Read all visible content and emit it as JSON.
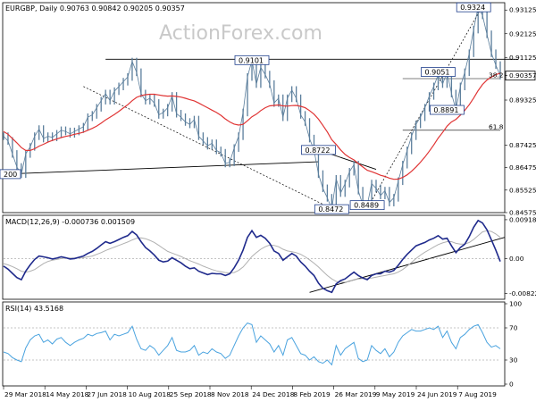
{
  "chart_data": {
    "type": "line",
    "source_watermark": "ActionForex.com",
    "x_ticks": [
      "29 Mar 2018",
      "14 May 2018",
      "27 Jun 2018",
      "10 Aug 2018",
      "25 Sep 2018",
      "8 Nov 2018",
      "24 Dec 2018",
      "8 Feb 2019",
      "26 Mar 2019",
      "9 May 2019",
      "24 Jun 2019",
      "7 Aug 2019"
    ],
    "price_panel": {
      "header": "EURGBP, Daily  0.90763  0.90842  0.90205  0.90357",
      "ylim": [
        0.8465,
        0.9336
      ],
      "y_ticks": [
        "0.93125",
        "0.92125",
        "0.91125",
        "0.90357",
        "0.89325",
        "0.87425",
        "0.86475",
        "0.85525",
        "0.84575"
      ],
      "y_tick_values": [
        0.93125,
        0.92125,
        0.91125,
        0.90357,
        0.89325,
        0.87425,
        0.86475,
        0.85525,
        0.84575
      ],
      "last_price": "0.90357",
      "annotations": [
        {
          "label": "0.9324",
          "x": 106,
          "y": 0.9324
        },
        {
          "label": "0.9101",
          "x": 56,
          "y": 0.9101
        },
        {
          "label": "0.9051",
          "x": 98,
          "y": 0.9051
        },
        {
          "label": "0.8891",
          "x": 100,
          "y": 0.8891
        },
        {
          "label": "0.8722",
          "x": 71,
          "y": 0.8722
        },
        {
          "label": "0.8472",
          "x": 74,
          "y": 0.8472
        },
        {
          "label": "0.8489",
          "x": 82,
          "y": 0.8489
        },
        {
          "label": "200",
          "x": 0,
          "y": 0.862
        }
      ],
      "fib_levels": [
        {
          "label": "38.2",
          "value": 0.9023
        },
        {
          "label": "61.8",
          "value": 0.8805
        }
      ],
      "series": [
        {
          "name": "EURGBP",
          "color": "#5b7e9c",
          "values": [
            0.878,
            0.876,
            0.8705,
            0.865,
            0.862,
            0.8705,
            0.8735,
            0.878,
            0.881,
            0.877,
            0.878,
            0.8775,
            0.879,
            0.8805,
            0.88,
            0.879,
            0.88,
            0.881,
            0.882,
            0.886,
            0.887,
            0.89,
            0.893,
            0.896,
            0.893,
            0.897,
            0.899,
            0.901,
            0.903,
            0.9095,
            0.905,
            0.896,
            0.893,
            0.894,
            0.892,
            0.887,
            0.888,
            0.89,
            0.895,
            0.8875,
            0.886,
            0.884,
            0.883,
            0.885,
            0.878,
            0.876,
            0.874,
            0.875,
            0.872,
            0.871,
            0.8665,
            0.867,
            0.873,
            0.878,
            0.888,
            0.903,
            0.91,
            0.9,
            0.907,
            0.904,
            0.9,
            0.892,
            0.894,
            0.886,
            0.894,
            0.8975,
            0.894,
            0.887,
            0.884,
            0.877,
            0.8722,
            0.862,
            0.856,
            0.852,
            0.8472,
            0.86,
            0.854,
            0.858,
            0.863,
            0.866,
            0.855,
            0.849,
            0.8489,
            0.858,
            0.856,
            0.853,
            0.855,
            0.85,
            0.852,
            0.859,
            0.866,
            0.872,
            0.878,
            0.883,
            0.886,
            0.89,
            0.895,
            0.899,
            0.904,
            0.9,
            0.9051,
            0.896,
            0.8891,
            0.899,
            0.905,
            0.913,
            0.923,
            0.9324,
            0.929,
            0.921,
            0.913,
            0.908,
            0.9036
          ]
        },
        {
          "name": "SMA",
          "color": "#e03434",
          "values": [
            0.88,
            0.8788,
            0.877,
            0.8752,
            0.8732,
            0.872,
            0.872,
            0.8727,
            0.8738,
            0.8746,
            0.8755,
            0.8762,
            0.8768,
            0.8774,
            0.8779,
            0.8783,
            0.8788,
            0.8792,
            0.8797,
            0.8805,
            0.8813,
            0.8823,
            0.8835,
            0.8849,
            0.886,
            0.8872,
            0.8885,
            0.8899,
            0.8913,
            0.893,
            0.8944,
            0.8951,
            0.8955,
            0.8957,
            0.8957,
            0.8954,
            0.8951,
            0.8949,
            0.895,
            0.8948,
            0.8945,
            0.894,
            0.8934,
            0.8929,
            0.892,
            0.891,
            0.89,
            0.889,
            0.888,
            0.8868,
            0.8853,
            0.884,
            0.8831,
            0.8827,
            0.883,
            0.8845,
            0.8862,
            0.8873,
            0.8888,
            0.89,
            0.8908,
            0.891,
            0.8912,
            0.8908,
            0.8907,
            0.8909,
            0.891,
            0.8906,
            0.89,
            0.8888,
            0.8873,
            0.8852,
            0.8826,
            0.8798,
            0.8765,
            0.8745,
            0.8722,
            0.8703,
            0.869,
            0.868,
            0.8665,
            0.865,
            0.8636,
            0.863,
            0.8623,
            0.8615,
            0.861,
            0.8603,
            0.8598,
            0.8599,
            0.8606,
            0.8617,
            0.8632,
            0.865,
            0.867,
            0.8692,
            0.8717,
            0.8743,
            0.8772,
            0.8796,
            0.8822,
            0.884,
            0.8851,
            0.8869,
            0.8889,
            0.8913,
            0.8941,
            0.8972,
            0.8998,
            0.9017,
            0.903,
            0.904,
            0.9046
          ]
        }
      ]
    },
    "macd_panel": {
      "header": "MACD(12,26,9) -0.000736 0.001509",
      "ylim": [
        -0.0092,
        0.0098
      ],
      "y_ticks": [
        "0.009181",
        "0.00",
        "-0.008225"
      ],
      "y_tick_values": [
        0.009181,
        0.0,
        -0.008225
      ],
      "series": [
        {
          "name": "MACD",
          "color": "#1f2a8c",
          "values": [
            -0.0018,
            -0.0025,
            -0.0035,
            -0.0045,
            -0.005,
            -0.003,
            -0.0015,
            -0.0002,
            0.0006,
            0.0004,
            0.0002,
            -0.0001,
            0.0001,
            0.0004,
            0.0002,
            -0.0001,
            0.0,
            0.0003,
            0.0006,
            0.0012,
            0.0017,
            0.0024,
            0.0032,
            0.004,
            0.0036,
            0.004,
            0.0045,
            0.005,
            0.0054,
            0.0064,
            0.0056,
            0.004,
            0.0026,
            0.0018,
            0.0008,
            -0.0004,
            -0.0008,
            -0.0006,
            0.0002,
            -0.0004,
            -0.001,
            -0.0018,
            -0.0024,
            -0.0022,
            -0.003,
            -0.0034,
            -0.0038,
            -0.0035,
            -0.0036,
            -0.0036,
            -0.004,
            -0.0036,
            -0.0022,
            -0.0004,
            0.002,
            0.005,
            0.0066,
            0.005,
            0.0055,
            0.0048,
            0.0036,
            0.0018,
            0.0012,
            -0.0004,
            0.0004,
            0.0012,
            0.0006,
            -0.0008,
            -0.0018,
            -0.003,
            -0.004,
            -0.0058,
            -0.007,
            -0.0076,
            -0.008,
            -0.006,
            -0.0052,
            -0.0048,
            -0.004,
            -0.0032,
            -0.004,
            -0.0046,
            -0.005,
            -0.004,
            -0.0036,
            -0.0036,
            -0.003,
            -0.0032,
            -0.0028,
            -0.0016,
            -0.0002,
            0.001,
            0.002,
            0.003,
            0.0034,
            0.0038,
            0.0044,
            0.0048,
            0.0054,
            0.0046,
            0.0048,
            0.003,
            0.0014,
            0.0026,
            0.0034,
            0.0052,
            0.0074,
            0.009,
            0.0084,
            0.0068,
            0.0044,
            0.002,
            -0.0007
          ]
        },
        {
          "name": "Signal",
          "color": "#b0b0b0",
          "values": [
            -0.0012,
            -0.0015,
            -0.0019,
            -0.0024,
            -0.003,
            -0.0032,
            -0.003,
            -0.0026,
            -0.0019,
            -0.0012,
            -0.0007,
            -0.0004,
            -0.0002,
            0.0,
            0.0001,
            0.0001,
            0.0001,
            0.0001,
            0.0002,
            0.0004,
            0.0006,
            0.001,
            0.0014,
            0.0019,
            0.0023,
            0.0027,
            0.0031,
            0.0035,
            0.0039,
            0.0044,
            0.0048,
            0.0049,
            0.0047,
            0.0043,
            0.0038,
            0.0031,
            0.0024,
            0.0017,
            0.0013,
            0.0009,
            0.0005,
            0.0,
            -0.0005,
            -0.0009,
            -0.0013,
            -0.0018,
            -0.0022,
            -0.0026,
            -0.0029,
            -0.0031,
            -0.0033,
            -0.0034,
            -0.0033,
            -0.0028,
            -0.002,
            -0.0008,
            0.0005,
            0.0014,
            0.0022,
            0.0028,
            0.0032,
            0.0031,
            0.0028,
            0.0022,
            0.0018,
            0.0016,
            0.0014,
            0.001,
            0.0004,
            -0.0003,
            -0.0011,
            -0.002,
            -0.003,
            -0.004,
            -0.0048,
            -0.0054,
            -0.0056,
            -0.0056,
            -0.0054,
            -0.005,
            -0.0048,
            -0.0047,
            -0.0047,
            -0.0046,
            -0.0044,
            -0.0042,
            -0.004,
            -0.0038,
            -0.0036,
            -0.0032,
            -0.0026,
            -0.0018,
            -0.0009,
            0.0,
            0.0008,
            0.0015,
            0.0021,
            0.0027,
            0.0033,
            0.0037,
            0.004,
            0.004,
            0.0036,
            0.0034,
            0.0034,
            0.0038,
            0.0045,
            0.0054,
            0.0063,
            0.0066,
            0.0064,
            0.0058,
            0.005
          ]
        }
      ]
    },
    "rsi_panel": {
      "header": "RSI(14) 43.5168",
      "ylim": [
        0,
        100
      ],
      "y_ticks": [
        "100",
        "70",
        "30",
        "0"
      ],
      "y_tick_values": [
        100,
        70,
        30,
        0
      ],
      "series": [
        {
          "name": "RSI",
          "color": "#4aa3df",
          "values": [
            40,
            38,
            33,
            30,
            28,
            45,
            55,
            60,
            62,
            52,
            55,
            50,
            56,
            58,
            52,
            48,
            52,
            55,
            57,
            62,
            60,
            63,
            64,
            66,
            55,
            62,
            60,
            62,
            64,
            72,
            56,
            44,
            42,
            48,
            44,
            36,
            42,
            48,
            58,
            42,
            40,
            40,
            42,
            48,
            36,
            40,
            38,
            44,
            40,
            38,
            32,
            36,
            48,
            60,
            70,
            76,
            74,
            52,
            60,
            55,
            50,
            40,
            48,
            36,
            55,
            58,
            48,
            38,
            36,
            30,
            34,
            28,
            26,
            30,
            24,
            48,
            36,
            44,
            48,
            52,
            32,
            28,
            30,
            48,
            42,
            38,
            44,
            34,
            40,
            52,
            60,
            64,
            68,
            66,
            66,
            68,
            70,
            68,
            72,
            58,
            66,
            52,
            44,
            58,
            62,
            68,
            72,
            74,
            64,
            52,
            46,
            48,
            44
          ]
        }
      ]
    },
    "trendlines": [
      {
        "name": "resistance-top",
        "from": [
          23,
          0.9105
        ],
        "to": [
          116,
          0.9105
        ]
      },
      {
        "name": "support-long",
        "from": [
          0,
          0.862
        ],
        "to": [
          71,
          0.8672
        ]
      },
      {
        "name": "dotted-downtrend",
        "from": [
          18,
          0.899
        ],
        "to": [
          75,
          0.8465
        ]
      },
      {
        "name": "dotted-uptrend",
        "from": [
          82,
          0.8475
        ],
        "to": [
          108,
          0.933
        ]
      },
      {
        "name": "wedge-upper",
        "from": [
          71,
          0.8722
        ],
        "to": [
          84,
          0.864
        ]
      },
      {
        "name": "macd-support",
        "from": [
          69,
          -0.008
        ],
        "to": [
          113,
          0.005
        ]
      }
    ],
    "hlines": [
      {
        "name": "level-38",
        "value": 0.9023,
        "from": 90
      },
      {
        "name": "level-61",
        "value": 0.8805,
        "from": 90
      }
    ]
  }
}
